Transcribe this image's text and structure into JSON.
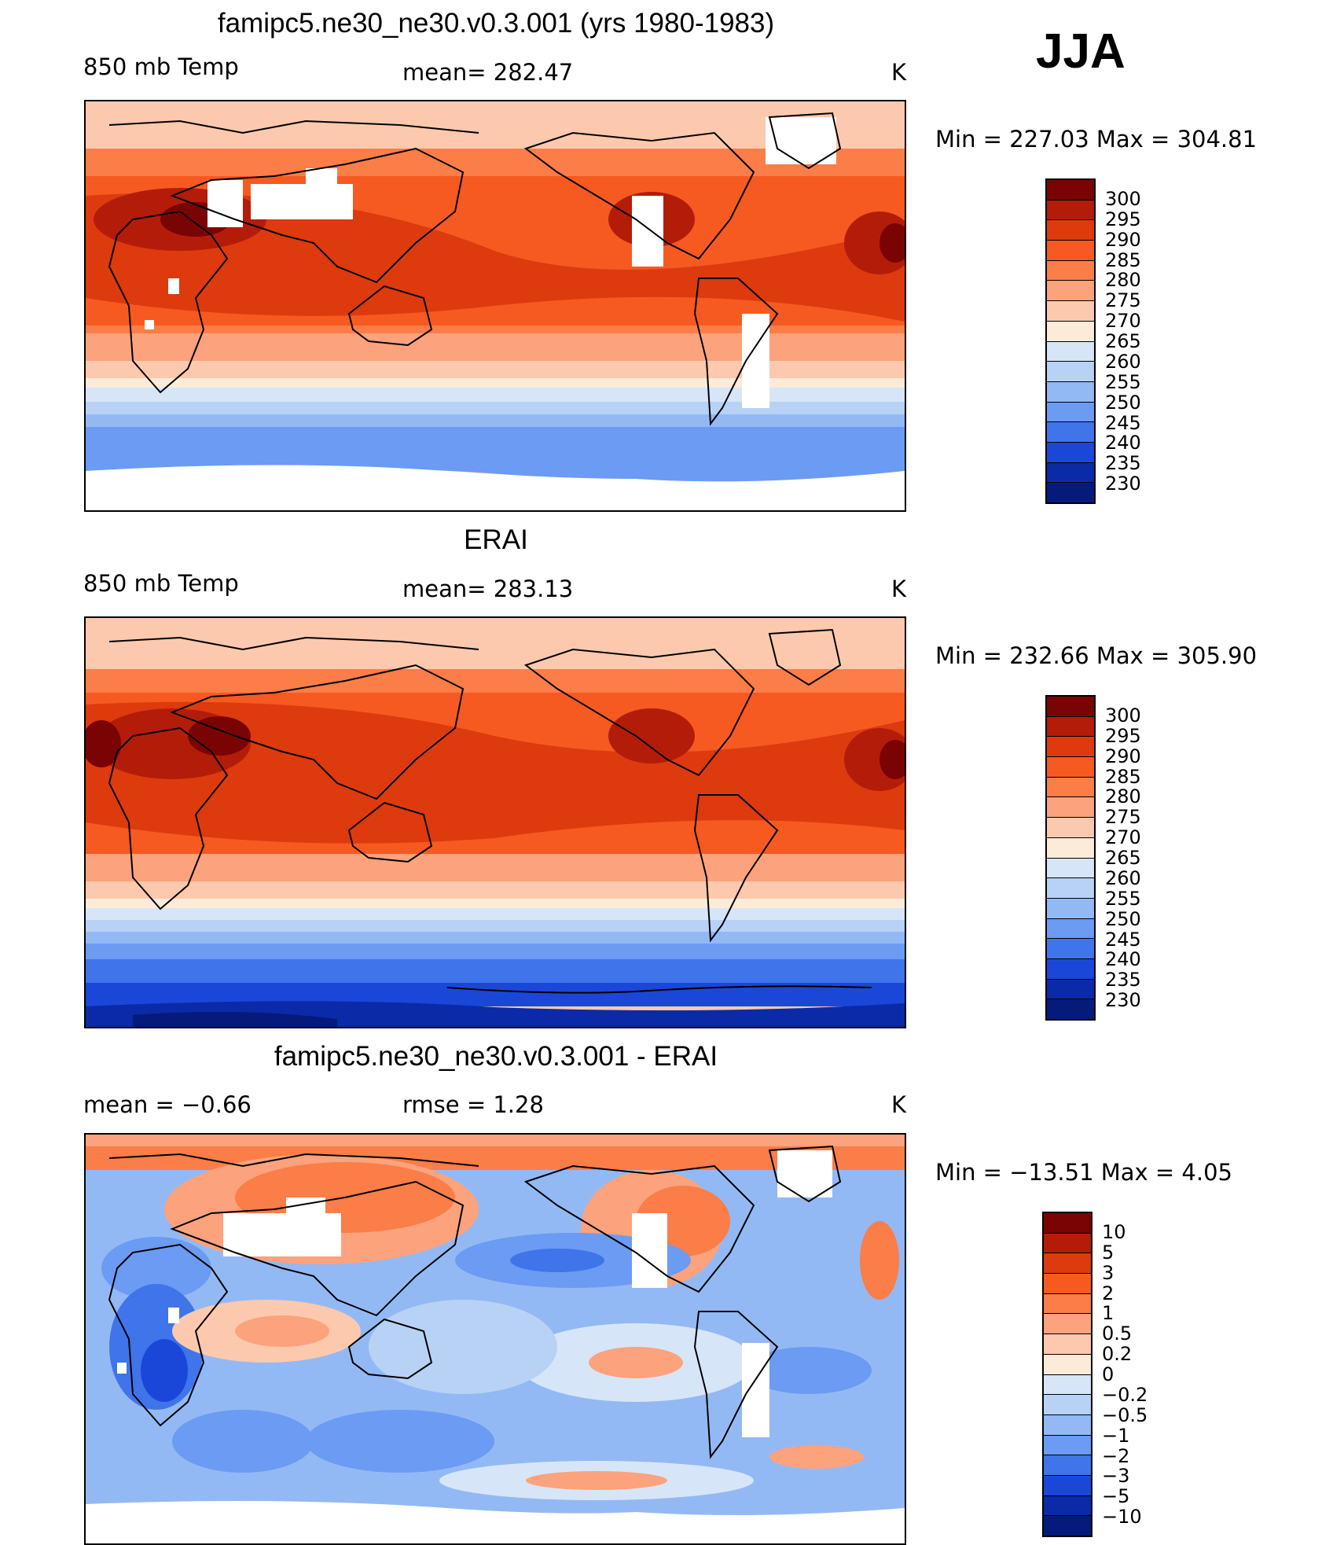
{
  "season": "JJA",
  "chart_data": [
    {
      "type": "heatmap",
      "title": "famipc5.ne30_ne30.v0.3.001 (yrs 1980-1983)",
      "left_label": "850 mb Temp",
      "center_label": "mean= 282.47",
      "units": "K",
      "stats_text": "Min  =  227.03  Max  =  304.81",
      "mean": 282.47,
      "min": 227.03,
      "max": 304.81,
      "colorbar_levels": [
        "300",
        "295",
        "290",
        "285",
        "280",
        "275",
        "270",
        "265",
        "260",
        "255",
        "250",
        "245",
        "240",
        "235",
        "230"
      ],
      "colorbar_colors": [
        "#7a0403",
        "#b41c0a",
        "#dd3a0e",
        "#f65a21",
        "#fb7d48",
        "#fca27c",
        "#fcc9ae",
        "#fdebd9",
        "#d6e6f8",
        "#b7d2f5",
        "#93b9f4",
        "#6b9bf2",
        "#3f74ea",
        "#1b47d8",
        "#0a2aa8",
        "#051a7a"
      ]
    },
    {
      "type": "heatmap",
      "title": "ERAI",
      "left_label": "850 mb Temp",
      "center_label": "mean= 283.13",
      "units": "K",
      "stats_text": "Min  =  232.66  Max  =  305.90",
      "mean": 283.13,
      "min": 232.66,
      "max": 305.9,
      "colorbar_levels": [
        "300",
        "295",
        "290",
        "285",
        "280",
        "275",
        "270",
        "265",
        "260",
        "255",
        "250",
        "245",
        "240",
        "235",
        "230"
      ],
      "colorbar_colors": [
        "#7a0403",
        "#b41c0a",
        "#dd3a0e",
        "#f65a21",
        "#fb7d48",
        "#fca27c",
        "#fcc9ae",
        "#fdebd9",
        "#d6e6f8",
        "#b7d2f5",
        "#93b9f4",
        "#6b9bf2",
        "#3f74ea",
        "#1b47d8",
        "#0a2aa8",
        "#051a7a"
      ]
    },
    {
      "type": "heatmap",
      "title": "famipc5.ne30_ne30.v0.3.001 - ERAI",
      "left_label": "mean  =    −0.66",
      "center_label": "rmse  =     1.28",
      "units": "K",
      "stats_text": "Min  = −13.51  Max  =      4.05",
      "mean": -0.66,
      "rmse": 1.28,
      "min": -13.51,
      "max": 4.05,
      "colorbar_levels": [
        "10",
        "5",
        "3",
        "2",
        "1",
        "0.5",
        "0.2",
        "0",
        "−0.2",
        "−0.5",
        "−1",
        "−2",
        "−3",
        "−5",
        "−10"
      ],
      "colorbar_colors": [
        "#7a0403",
        "#b41c0a",
        "#dd3a0e",
        "#f65a21",
        "#fb7d48",
        "#fca27c",
        "#fcc9ae",
        "#fdebd9",
        "#d6e6f8",
        "#b7d2f5",
        "#93b9f4",
        "#6b9bf2",
        "#3f74ea",
        "#1b47d8",
        "#0a2aa8",
        "#051a7a"
      ]
    }
  ]
}
